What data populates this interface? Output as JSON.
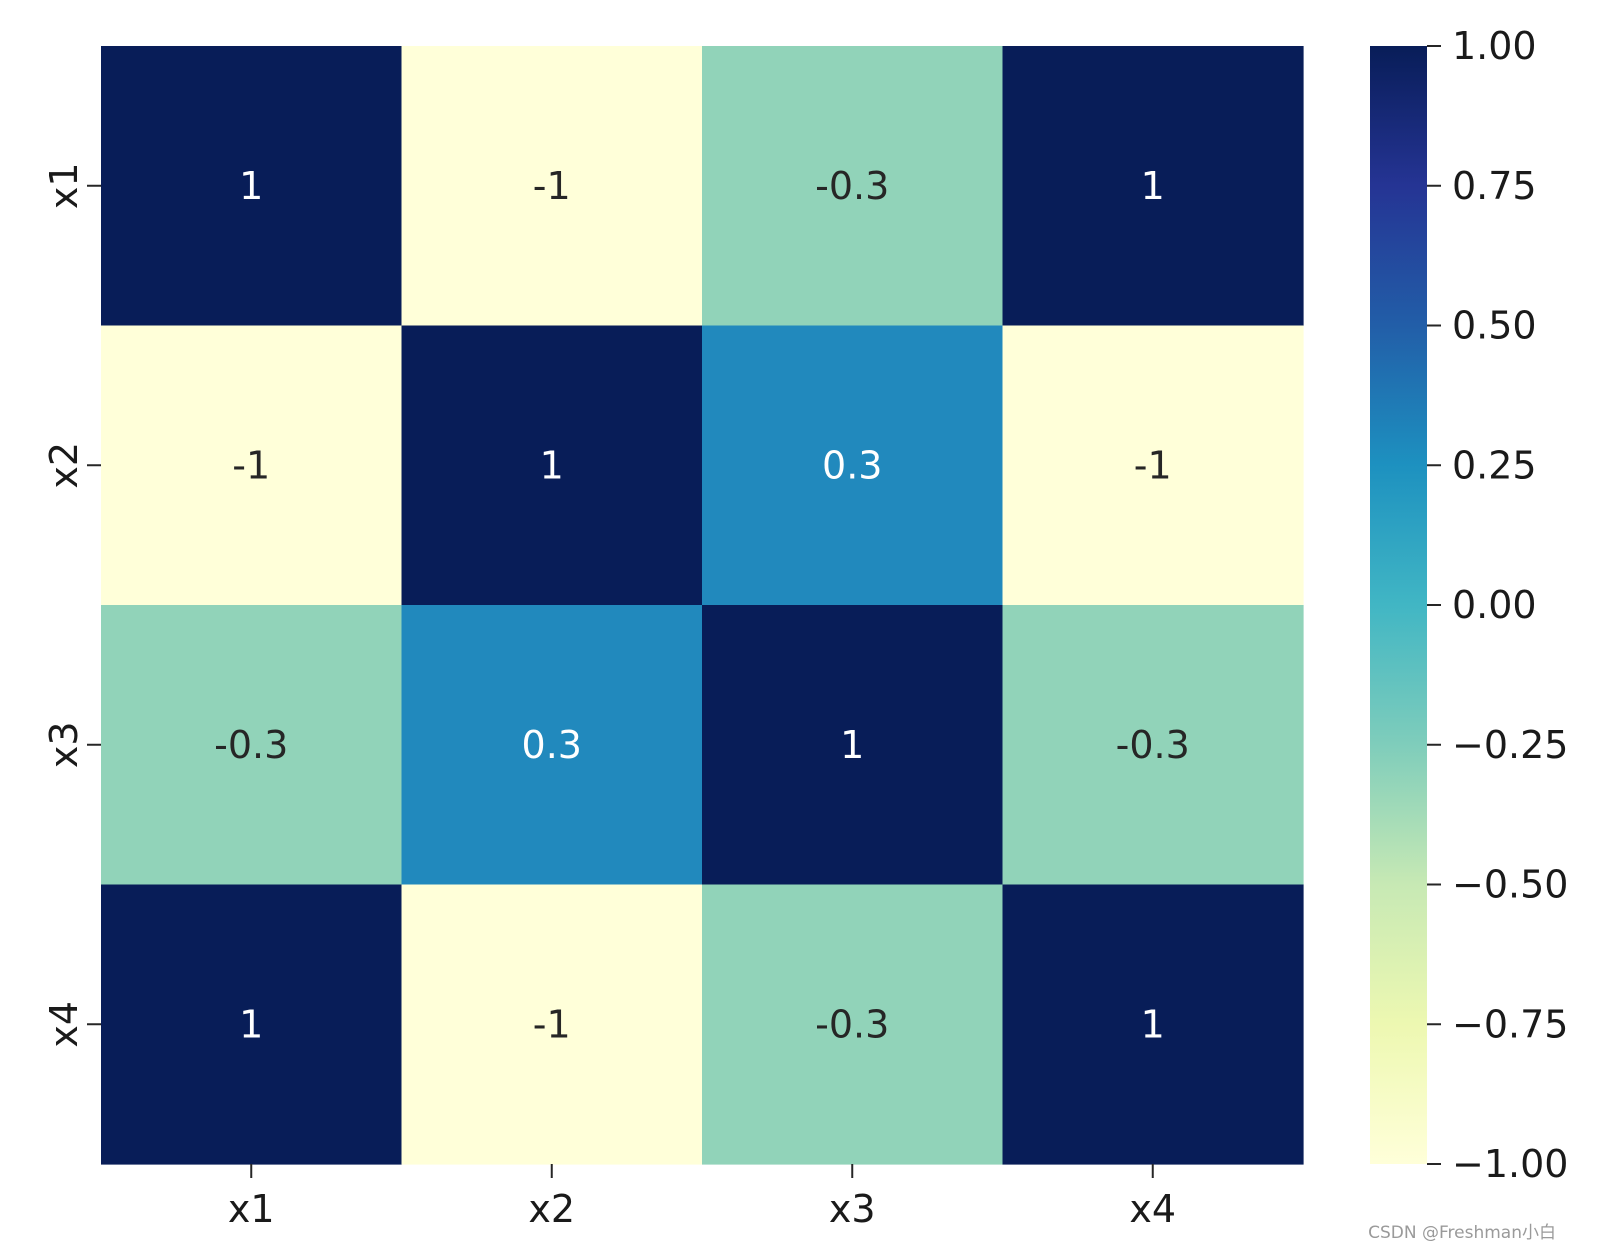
{
  "chart_data": {
    "type": "heatmap",
    "x_labels": [
      "x1",
      "x2",
      "x3",
      "x4"
    ],
    "y_labels": [
      "x1",
      "x2",
      "x3",
      "x4"
    ],
    "values": [
      [
        1,
        -1,
        -0.3,
        1
      ],
      [
        -1,
        1,
        0.3,
        -1
      ],
      [
        -0.3,
        0.3,
        1,
        -0.3
      ],
      [
        1,
        -1,
        -0.3,
        1
      ]
    ],
    "cell_labels": [
      [
        "1",
        "-1",
        "-0.3",
        "1"
      ],
      [
        "-1",
        "1",
        "0.3",
        "-1"
      ],
      [
        "-0.3",
        "0.3",
        "1",
        "-0.3"
      ],
      [
        "1",
        "-1",
        "-0.3",
        "1"
      ]
    ],
    "colormap": "YlGnBu",
    "vmin": -1,
    "vmax": 1,
    "colorbar": {
      "position": "right",
      "ticks": [
        1.0,
        0.75,
        0.5,
        0.25,
        0.0,
        -0.25,
        -0.5,
        -0.75,
        -1.0
      ],
      "tick_labels": [
        "1.00",
        "0.75",
        "0.50",
        "0.25",
        "0.00",
        "−0.25",
        "−0.50",
        "−0.75",
        "−1.00"
      ]
    },
    "colors": {
      "high": "#081d58",
      "low": "#ffffd9",
      "mid_negative": "#91d3b9",
      "mid_positive": "#2189bd"
    }
  },
  "watermark": "CSDN @Freshman小白"
}
